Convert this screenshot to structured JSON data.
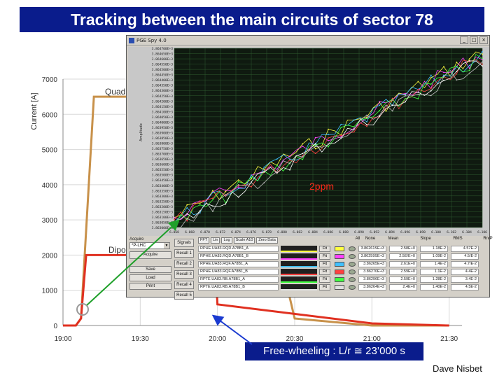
{
  "slide": {
    "title": "Tracking between the main circuits of sector 78",
    "free_wheeling_label": "Free-wheeling : L/r ≅ 23’000 s",
    "author": "Dave  Nisbet",
    "ppm_label": "2ppm"
  },
  "chart_data": [
    {
      "type": "line",
      "ylabel": "Current [A]",
      "xlabel": "",
      "x_ticks": [
        "19:00",
        "19:30",
        "20:00",
        "20:30",
        "21:00",
        "21:30"
      ],
      "ylim": [
        0,
        7000
      ],
      "y_ticks": [
        0,
        1000,
        2000,
        3000,
        4000,
        5000,
        6000,
        7000
      ],
      "series": [
        {
          "name": "Quadr",
          "color": "#c8914a",
          "points": [
            [
              "19:00",
              0
            ],
            [
              "19:05",
              0
            ],
            [
              "19:07",
              200
            ],
            [
              "19:12",
              6500
            ],
            [
              "19:20",
              6500
            ],
            [
              "19:58",
              6500
            ],
            [
              "20:00",
              6500
            ],
            [
              "20:10",
              6400
            ],
            [
              "20:30",
              200
            ],
            [
              "21:00",
              0
            ],
            [
              "21:30",
              0
            ]
          ]
        },
        {
          "name": "Dipol",
          "color": "#e03020",
          "points": [
            [
              "19:00",
              0
            ],
            [
              "19:05",
              0
            ],
            [
              "19:07",
              200
            ],
            [
              "19:09",
              2000
            ],
            [
              "19:20",
              2000
            ],
            [
              "19:59",
              2000
            ],
            [
              "20:00",
              600
            ],
            [
              "21:00",
              60
            ],
            [
              "21:30",
              0
            ]
          ]
        }
      ]
    }
  ],
  "spy": {
    "window_title": "PGE Spy 4.0",
    "y_axis_label": "Amplitude",
    "y_ticks": [
      "3.864700E+3",
      "3.864650E+3",
      "3.864600E+3",
      "3.864550E+3",
      "3.864500E+3",
      "3.864450E+3",
      "3.864400E+3",
      "3.864350E+3",
      "3.864300E+3",
      "3.864250E+3",
      "3.864200E+3",
      "3.864150E+3",
      "3.864100E+3",
      "3.864050E+3",
      "3.864000E+3",
      "3.863950E+3",
      "3.863900E+3",
      "3.863850E+3",
      "3.863800E+3",
      "3.863750E+3",
      "3.863700E+3",
      "3.863650E+3",
      "3.863600E+3",
      "3.863550E+3",
      "3.863500E+3",
      "3.863450E+3",
      "3.863400E+3",
      "3.863350E+3",
      "3.863300E+3",
      "3.863250E+3",
      "3.863200E+3",
      "3.863150E+3",
      "3.863100E+3",
      "3.863050E+3",
      "3.863000E+3"
    ],
    "x_ticks": [
      "6.068",
      "6.068",
      "6.070",
      "6.072",
      "6.074",
      "6.076",
      "6.078",
      "6.080",
      "6.082",
      "6.084",
      "6.086",
      "6.088",
      "6.090",
      "6.092",
      "6.094",
      "6.096",
      "6.098",
      "6.100",
      "6.102",
      "6.104",
      "6.106"
    ],
    "series_colors": [
      "#ffff40",
      "#ff40ff",
      "#40c0ff",
      "#ff4040",
      "#40ff40",
      "#ffffff",
      "#c0c0c0"
    ],
    "controls": {
      "acquire_group": "Acquire",
      "select_value": "*P-LHC",
      "acquire_btn": "Acquire",
      "save_btn": "Save",
      "load_btn": "Load",
      "print_btn": "Print",
      "signals_btn": "Signals",
      "recall_btns": [
        "Recall 1",
        "Recall 2",
        "Recall 3",
        "Recall 4",
        "Recall 5"
      ],
      "fft_label": "FFT",
      "lin_label": "Lin",
      "log_label": "Log",
      "scale_label": "Scale A10",
      "zero_label": "Zero Data"
    },
    "table_headers": [
      "All",
      "None",
      "Mean",
      "Slope",
      "RMS",
      "Rn/P"
    ],
    "channels": [
      {
        "name": "RPHE.UA83.RQD.A78B1_A",
        "color": "#ffff40",
        "mean": "3.86261SE+3",
        "slope": "2.58E+0",
        "rms": "1.18E-2",
        "rnp": "4.57E-2"
      },
      {
        "name": "RPHE.UA83.RQD.A78B1_B",
        "color": "#ff40ff",
        "mean": "3.86259SE+3",
        "slope": "2.5E/E+0",
        "rms": "1.09E-2",
        "rnp": "4.5/E-2"
      },
      {
        "name": "RPHE.UA83.RQF.A78B1_A",
        "color": "#40c0ff",
        "mean": "3.86265E+3",
        "slope": "2.61E+0",
        "rms": "1.4E-2",
        "rnp": "4.7/E-2"
      },
      {
        "name": "RPHE.UA83.RQF.A78B1_B",
        "color": "#ff4040",
        "mean": "3.86270E+3",
        "slope": "2.59E+0",
        "rms": "1.1E-2",
        "rnp": "4.4E-2"
      },
      {
        "name": "RPTE.UA83.RB.A78B1_A",
        "color": "#40ff40",
        "mean": "3.86296E+3",
        "slope": "2.59E+0",
        "rms": "1.28E-2",
        "rnp": "3.4E-2"
      },
      {
        "name": "RPTE.UA83.RB.A78B1_B",
        "color": "#e0e0e0",
        "mean": "3.86264E+3",
        "slope": "2.4E+0",
        "rms": "1.40E-2",
        "rnp": "4.5E-2"
      }
    ],
    "fit_label": "Fit"
  },
  "colors": {
    "title_bg": "#0a1c8c",
    "plot_bg": "#0f1a10",
    "grid": "#2e5a2e",
    "annotation_line": "#1fa02a",
    "arrow": "#1a3ad0"
  }
}
